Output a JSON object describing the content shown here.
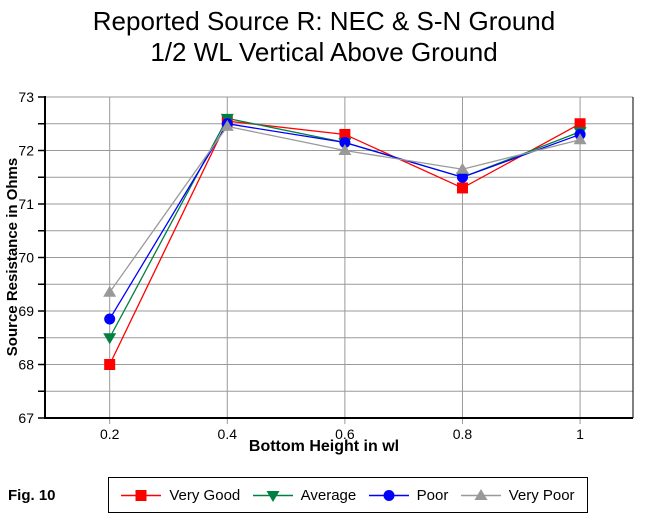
{
  "title": {
    "line1": "Reported Source R: NEC & S-N Ground",
    "line2": "1/2 WL Vertical Above Ground"
  },
  "figure_label": "Fig. 10",
  "chart_data": {
    "type": "line",
    "title": "Reported Source R: NEC & S-N Ground 1/2 WL Vertical Above Ground",
    "xlabel": "Bottom Height in wl",
    "ylabel": "Source Resistance in Ohms",
    "x": [
      0.2,
      0.4,
      0.6,
      0.8,
      1
    ],
    "xtick_labels": [
      "0.2",
      "0.4",
      "0.6",
      "0.8",
      "1"
    ],
    "series": [
      {
        "name": "Very Good",
        "color": "#ff0000",
        "marker": "square",
        "values": [
          68.0,
          72.55,
          72.3,
          71.3,
          72.5
        ]
      },
      {
        "name": "Average",
        "color": "#008040",
        "marker": "triangle-down",
        "values": [
          68.5,
          72.6,
          72.15,
          71.5,
          72.35
        ]
      },
      {
        "name": "Poor",
        "color": "#0000ff",
        "marker": "circle",
        "values": [
          68.85,
          72.5,
          72.15,
          71.5,
          72.3
        ]
      },
      {
        "name": "Very Poor",
        "color": "#999999",
        "marker": "triangle-up",
        "values": [
          69.35,
          72.45,
          72.0,
          71.65,
          72.2
        ]
      }
    ],
    "xlim": [
      0.09,
      1.09
    ],
    "ylim": [
      67,
      73
    ],
    "yticks_labeled": [
      67,
      68,
      69,
      70,
      71,
      72,
      73
    ],
    "ygrid_step": 0.5,
    "grid": true,
    "grid_color": "#9a9a9a",
    "axis_color": "#000000",
    "legend_position": "bottom"
  }
}
